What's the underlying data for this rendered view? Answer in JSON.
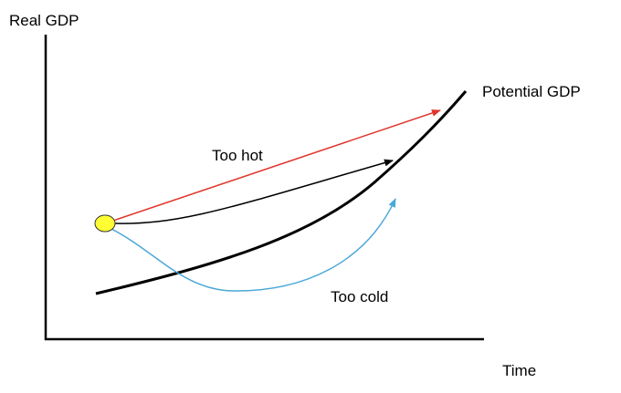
{
  "axes": {
    "y_label": "Real GDP",
    "x_label": "Time"
  },
  "curves": {
    "potential": "Potential GDP",
    "hot": "Too hot",
    "cold": "Too cold"
  }
}
